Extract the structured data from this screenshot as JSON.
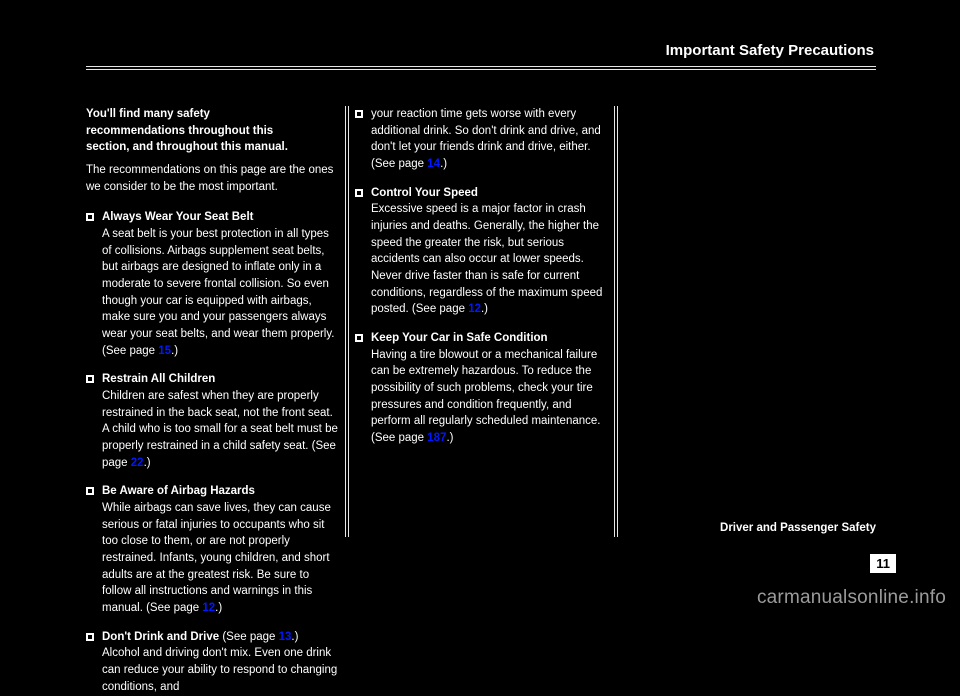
{
  "header": {
    "title": "Important Safety Precautions"
  },
  "col1": {
    "intro_head_line1": "You'll find many safety",
    "intro_head_line2": "recommendations throughout this",
    "intro_head_line3": "section, and throughout this manual.",
    "intro_body": "The recommendations on this page are the ones we consider to be the most important.",
    "items": [
      {
        "title": "Always Wear Your Seat Belt",
        "body_before": "A seat belt is your best protection in all types of collisions. Airbags supplement seat belts, but airbags are designed to inflate only in a moderate to severe frontal collision. So even though your car is equipped with airbags, make sure you and your passengers always wear your seat belts, and wear them properly. (See page ",
        "page": "15",
        "body_after": ".)"
      },
      {
        "title": "Restrain All Children",
        "body_before": "Children are safest when they are properly restrained in the back seat, not the front seat. A child who is too small for a seat belt must be properly restrained in a child safety seat. (See page ",
        "page": "22",
        "body_after": ".)"
      },
      {
        "title": "Be Aware of Airbag Hazards",
        "body_before": "While airbags can save lives, they can cause serious or fatal injuries to occupants who sit too close to them, or are not properly restrained. Infants, young children, and short adults are at the greatest risk. Be sure to follow all instructions and warnings in this manual. (See page ",
        "page": "12",
        "body_after": ".)"
      },
      {
        "title_before": "Don't Drink and Drive",
        "title_page_pre": "(See page ",
        "title_page": "13",
        "title_page_post": ".)",
        "body": "Alcohol and driving don't mix. Even one drink can reduce your ability to respond to changing conditions, and"
      }
    ]
  },
  "col2": {
    "items": [
      {
        "pre": "your reaction time gets worse with every additional drink. So don't drink and drive, and don't let your friends drink and drive, either. (See page ",
        "page": "14",
        "post": ".)"
      },
      {
        "title": "Control Your Speed",
        "body_before": "Excessive speed is a major factor in crash injuries and deaths. Generally, the higher the speed the greater the risk, but serious accidents can also occur at lower speeds. Never drive faster than is safe for current conditions, regardless of the maximum speed posted. (See page ",
        "page": "12",
        "body_after": ".)"
      },
      {
        "title": "Keep Your Car in Safe Condition",
        "body_before": "Having a tire blowout or a mechanical failure can be extremely hazardous. To reduce the possibility of such problems, check your tire pressures and condition frequently, and perform all regularly scheduled maintenance. (See page ",
        "page": "187",
        "body_after": ".)"
      }
    ]
  },
  "col3": {
    "label": "Driver and Passenger Safety"
  },
  "page_number": "11",
  "watermark": "carmanualsonline.info"
}
